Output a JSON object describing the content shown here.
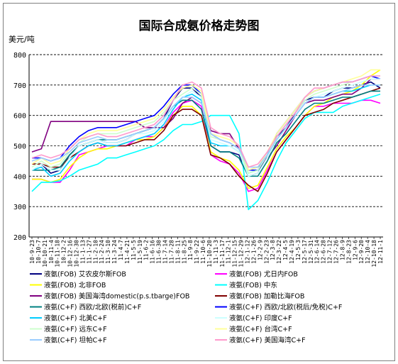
{
  "chart_data": {
    "type": "line",
    "title": "国际合成氨价格走势图",
    "ylabel": "美元/吨",
    "xlabel": "",
    "ylim": [
      200,
      800
    ],
    "yticks": [
      200,
      300,
      400,
      500,
      600,
      700,
      800
    ],
    "grid": true,
    "legend_position": "bottom",
    "x": [
      "10-9-23",
      "10-10-14",
      "10-11-4",
      "10-11-25",
      "10-12-16",
      "11-1-6",
      "11-1-27",
      "11-2-17",
      "11-3-10",
      "11-3-31",
      "11-4-21",
      "11-5-12",
      "11-6-2",
      "11-6-23",
      "11-7-14",
      "11-8-4",
      "11-8-25",
      "11-9-15",
      "11-10-6",
      "11-10-27",
      "11-11-17",
      "11-12-8",
      "11-12-29",
      "12-1-19",
      "12-2-9",
      "12-3-1",
      "12-3-22",
      "12-4-12",
      "12-5-3",
      "12-5-24",
      "12-6-14",
      "12-7-5",
      "12-7-26",
      "12-8-16",
      "12-9-6",
      "12-9-27",
      "12-10-18",
      "12-11-8"
    ],
    "x_tick_labels": [
      "10-9-23",
      "10-10-7",
      "10-10-21",
      "10-11-4",
      "10-11-18",
      "10-12-2",
      "10-12-16",
      "10-12-30",
      "11-1-13",
      "11-1-27",
      "11-2-10",
      "11-2-24",
      "11-3-10",
      "11-3-24",
      "11-4-7",
      "11-4-21",
      "11-5-5",
      "11-5-19",
      "11-6-2",
      "11-6-16",
      "11-6-30",
      "11-7-14",
      "11-7-28",
      "11-8-11",
      "11-8-25",
      "11-9-8",
      "11-9-22",
      "11-10-6",
      "11-10-20",
      "11-11-3",
      "11-11-17",
      "11-12-1",
      "11-12-15",
      "11-12-29",
      "12-1-12",
      "12-1-26",
      "12-2-9",
      "12-2-23",
      "12-3-8",
      "12-3-22",
      "12-4-5",
      "12-4-19",
      "12-5-3",
      "12-5-17",
      "12-5-31",
      "12-6-14",
      "12-6-28",
      "12-7-12",
      "12-7-26",
      "12-8-9",
      "12-8-23",
      "12-9-6",
      "12-9-20",
      "12-10-4",
      "12-10-18",
      "12-11-1"
    ],
    "series": [
      {
        "name": "液氨(FOB)  艾农皮尔斯FOB",
        "color": "#000080",
        "values": [
          440,
          440,
          410,
          420,
          470,
          500,
          510,
          520,
          510,
          510,
          520,
          540,
          550,
          560,
          590,
          650,
          690,
          690,
          660,
          500,
          480,
          480,
          470,
          400,
          410,
          470,
          530,
          560,
          610,
          650,
          660,
          660,
          680,
          690,
          690,
          700,
          710,
          690
        ]
      },
      {
        "name": "液氨(FOB)  尤日内FOB",
        "color": "#ff00ff",
        "values": [
          390,
          390,
          380,
          380,
          420,
          470,
          480,
          490,
          500,
          500,
          500,
          520,
          530,
          530,
          560,
          610,
          640,
          650,
          630,
          470,
          450,
          440,
          410,
          350,
          360,
          420,
          480,
          520,
          560,
          600,
          630,
          630,
          640,
          640,
          640,
          650,
          650,
          640
        ]
      },
      {
        "name": "液氨(FOB)  北非FOB",
        "color": "#ffff00",
        "values": [
          390,
          390,
          380,
          390,
          430,
          460,
          480,
          490,
          490,
          500,
          510,
          520,
          520,
          530,
          560,
          600,
          630,
          630,
          600,
          480,
          460,
          450,
          420,
          360,
          370,
          430,
          490,
          530,
          560,
          600,
          630,
          640,
          660,
          670,
          680,
          700,
          730,
          750
        ]
      },
      {
        "name": "液氨(FOB)  中东",
        "color": "#00ffff",
        "values": [
          350,
          380,
          380,
          385,
          400,
          420,
          430,
          440,
          460,
          460,
          470,
          480,
          490,
          500,
          520,
          550,
          570,
          570,
          580,
          600,
          600,
          600,
          540,
          290,
          320,
          380,
          450,
          510,
          550,
          590,
          610,
          610,
          610,
          630,
          640,
          650,
          660,
          670
        ]
      },
      {
        "name": "液氨(FOB)  美国海湾domestic(p.s.tbarge)FOB",
        "color": "#800080",
        "values": [
          480,
          490,
          580,
          580,
          580,
          580,
          580,
          580,
          580,
          580,
          580,
          580,
          560,
          560,
          560,
          590,
          640,
          660,
          640,
          550,
          540,
          540,
          490,
          420,
          430,
          460,
          500,
          550,
          600,
          640,
          650,
          650,
          660,
          670,
          670,
          690,
          720,
          720
        ]
      },
      {
        "name": "液氨(FOB)  加勒比海FOB",
        "color": "#800000",
        "values": [
          440,
          440,
          430,
          430,
          460,
          480,
          500,
          510,
          500,
          500,
          500,
          510,
          520,
          520,
          550,
          600,
          620,
          620,
          600,
          470,
          460,
          440,
          400,
          370,
          350,
          410,
          480,
          520,
          560,
          600,
          610,
          620,
          640,
          650,
          660,
          670,
          680,
          690
        ]
      },
      {
        "name": "液氨(C+F)  西欧/北欧(税前)C+F",
        "color": "#008080",
        "values": [
          420,
          420,
          420,
          430,
          470,
          500,
          510,
          520,
          520,
          520,
          530,
          540,
          550,
          560,
          590,
          630,
          650,
          650,
          620,
          500,
          480,
          480,
          460,
          400,
          400,
          450,
          510,
          540,
          580,
          620,
          640,
          640,
          650,
          660,
          660,
          670,
          680,
          680
        ]
      },
      {
        "name": "液氨(C+F)  西欧/北欧(税后/免税)C+F",
        "color": "#0000ff",
        "values": [
          460,
          460,
          450,
          460,
          500,
          530,
          550,
          560,
          560,
          560,
          570,
          580,
          590,
          600,
          630,
          670,
          700,
          700,
          670,
          540,
          520,
          510,
          490,
          420,
          420,
          470,
          540,
          580,
          620,
          660,
          680,
          690,
          700,
          710,
          710,
          720,
          730,
          720
        ]
      },
      {
        "name": "液氨(C+F)  北美C+F",
        "color": "#00ccff",
        "values": [
          420,
          430,
          400,
          410,
          450,
          480,
          500,
          510,
          500,
          500,
          510,
          520,
          530,
          540,
          570,
          620,
          660,
          670,
          650,
          510,
          500,
          500,
          480,
          410,
          420,
          470,
          520,
          560,
          600,
          640,
          660,
          660,
          670,
          680,
          680,
          690,
          700,
          700
        ]
      },
      {
        "name": "液氨(C+F)  印度C+F",
        "color": "#ccffff",
        "values": [
          420,
          440,
          420,
          420,
          460,
          500,
          510,
          520,
          510,
          510,
          520,
          540,
          540,
          550,
          580,
          630,
          660,
          680,
          660,
          520,
          510,
          500,
          480,
          400,
          410,
          460,
          520,
          560,
          600,
          640,
          660,
          670,
          680,
          690,
          700,
          710,
          720,
          720
        ]
      },
      {
        "name": "液氨(C+F)  远东C+F",
        "color": "#ccffcc",
        "values": [
          430,
          450,
          430,
          440,
          480,
          510,
          530,
          540,
          540,
          540,
          550,
          560,
          570,
          580,
          610,
          650,
          670,
          690,
          670,
          530,
          520,
          510,
          490,
          410,
          420,
          470,
          530,
          570,
          610,
          650,
          670,
          680,
          690,
          700,
          710,
          720,
          730,
          730
        ]
      },
      {
        "name": "液氨(C+F)  台湾C+F",
        "color": "#ffff99",
        "values": [
          440,
          460,
          440,
          450,
          490,
          520,
          540,
          550,
          550,
          550,
          560,
          570,
          580,
          590,
          620,
          660,
          690,
          700,
          680,
          540,
          530,
          520,
          500,
          420,
          430,
          480,
          540,
          580,
          620,
          660,
          680,
          690,
          700,
          710,
          720,
          730,
          750,
          750
        ]
      },
      {
        "name": "液氨(C+F)  坦帕C+F",
        "color": "#99ccff",
        "values": [
          450,
          460,
          450,
          460,
          480,
          510,
          520,
          530,
          520,
          520,
          530,
          540,
          550,
          560,
          590,
          630,
          660,
          660,
          640,
          540,
          520,
          510,
          490,
          430,
          430,
          470,
          520,
          560,
          600,
          640,
          660,
          660,
          670,
          680,
          690,
          700,
          700,
          700
        ]
      },
      {
        "name": "液氨(C+F)  美国海湾C+F",
        "color": "#ff99cc",
        "values": [
          460,
          470,
          460,
          470,
          490,
          520,
          530,
          540,
          530,
          530,
          540,
          550,
          560,
          570,
          600,
          650,
          700,
          710,
          690,
          560,
          540,
          530,
          500,
          430,
          440,
          480,
          530,
          570,
          610,
          660,
          690,
          690,
          700,
          710,
          710,
          720,
          730,
          730
        ]
      }
    ]
  }
}
